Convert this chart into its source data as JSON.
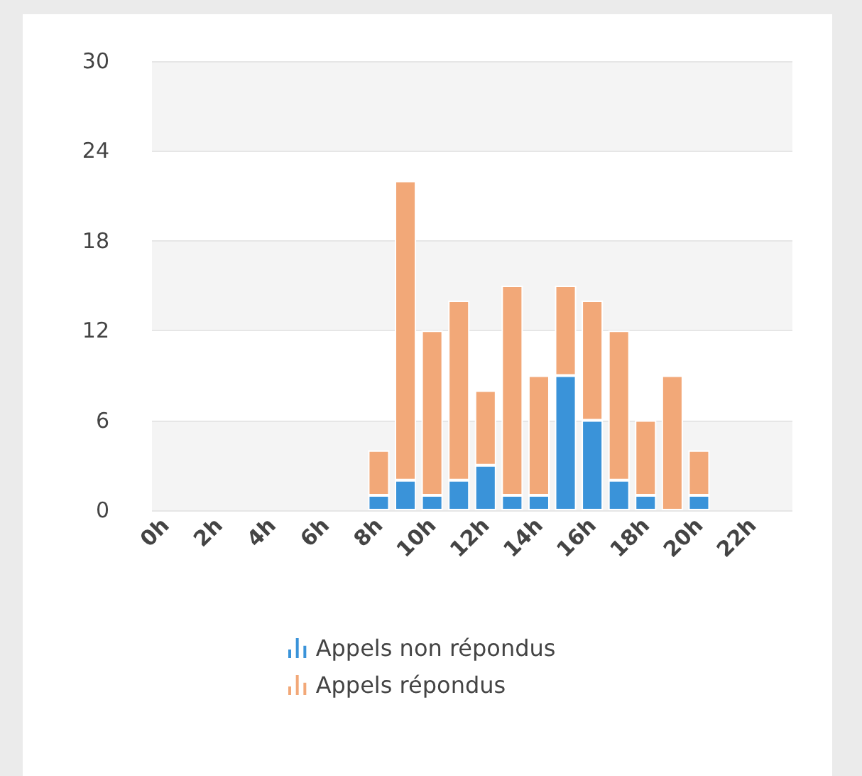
{
  "chart_data": {
    "type": "bar",
    "stacked": true,
    "categories": [
      "0h",
      null,
      "2h",
      null,
      "4h",
      null,
      "6h",
      null,
      "8h",
      null,
      "10h",
      null,
      "12h",
      null,
      "14h",
      null,
      "16h",
      null,
      "18h",
      null,
      "20h",
      null,
      "22h",
      null
    ],
    "series": [
      {
        "name": "Appels non répondus",
        "color": "#3a93d9",
        "values": [
          0,
          0,
          0,
          0,
          0,
          0,
          0,
          0,
          1,
          2,
          1,
          2,
          3,
          1,
          1,
          9,
          6,
          2,
          1,
          0,
          1,
          0,
          0,
          0
        ]
      },
      {
        "name": "Appels répondus",
        "color": "#f2a878",
        "values": [
          0,
          0,
          0,
          0,
          0,
          0,
          0,
          0,
          3,
          20,
          11,
          12,
          5,
          14,
          8,
          6,
          8,
          10,
          5,
          9,
          3,
          0,
          0,
          0
        ]
      }
    ],
    "ylim": [
      0,
      30
    ],
    "yticks": [
      0,
      6,
      12,
      18,
      24,
      30
    ],
    "grid": "y",
    "legend": "bottom"
  }
}
